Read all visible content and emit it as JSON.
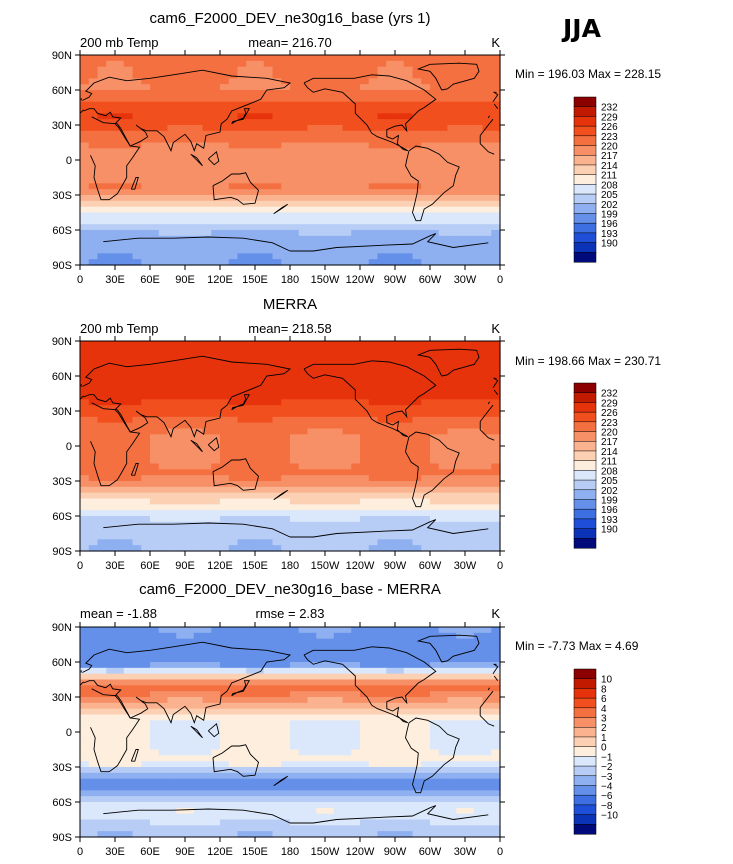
{
  "season": "JJA",
  "chart_data": [
    {
      "type": "heatmap",
      "title": "cam6_F2000_DEV_ne30g16_base (yrs 1)",
      "left_label": "200 mb Temp",
      "center_label": "mean= 216.70",
      "right_label": "K",
      "minmax": "Min = 196.03 Max = 228.15",
      "min": 196.03,
      "max": 228.15,
      "mean": 216.7,
      "x_ticks": [
        "0",
        "30E",
        "60E",
        "90E",
        "120E",
        "150E",
        "180",
        "150W",
        "120W",
        "90W",
        "60W",
        "30W",
        "0"
      ],
      "y_ticks": [
        "90N",
        "60N",
        "30N",
        "0",
        "30S",
        "60S",
        "90S"
      ],
      "colorbar": {
        "labels": [
          "232",
          "229",
          "226",
          "223",
          "220",
          "217",
          "214",
          "211",
          "208",
          "205",
          "202",
          "199",
          "196",
          "193",
          "190"
        ],
        "colors": [
          "#8c0000",
          "#c21a00",
          "#e6330b",
          "#f24f1f",
          "#f57040",
          "#f79067",
          "#fab28f",
          "#fcd0b3",
          "#fdeedd",
          "#dbe8fb",
          "#b7cdf5",
          "#8eaff0",
          "#6490ea",
          "#3d6fe2",
          "#1f4fd9",
          "#0a33b8",
          "#000a7a"
        ],
        "band_label_map": "label i sits on boundary between swatch i and i+1 (top to bottom)"
      },
      "field_summary": {
        "north_high_lat": 221,
        "north_midlat_asia": 226,
        "tropics": 219,
        "subtropics_south": 220,
        "south_midlat": 208,
        "antarctic": 199
      }
    },
    {
      "type": "heatmap",
      "title": "MERRA",
      "left_label": "200 mb Temp",
      "center_label": "mean= 218.58",
      "right_label": "K",
      "minmax": "Min = 198.66 Max = 230.71",
      "min": 198.66,
      "max": 230.71,
      "mean": 218.58,
      "x_ticks": [
        "0",
        "30E",
        "60E",
        "90E",
        "120E",
        "150E",
        "180",
        "150W",
        "120W",
        "90W",
        "60W",
        "30W",
        "0"
      ],
      "y_ticks": [
        "90N",
        "60N",
        "30N",
        "0",
        "30S",
        "60S",
        "90S"
      ],
      "colorbar": {
        "labels": [
          "232",
          "229",
          "226",
          "223",
          "220",
          "217",
          "214",
          "211",
          "208",
          "205",
          "202",
          "199",
          "196",
          "193",
          "190"
        ],
        "colors": [
          "#8c0000",
          "#c21a00",
          "#e6330b",
          "#f24f1f",
          "#f57040",
          "#f79067",
          "#fab28f",
          "#fcd0b3",
          "#fdeedd",
          "#dbe8fb",
          "#b7cdf5",
          "#8eaff0",
          "#6490ea",
          "#3d6fe2",
          "#1f4fd9",
          "#0a33b8",
          "#000a7a"
        ]
      },
      "field_summary": {
        "north_high_lat": 228,
        "north_midlat_asia": 226,
        "tropics": 220,
        "subtropics_south": 221,
        "south_midlat": 212,
        "antarctic": 202
      }
    },
    {
      "type": "heatmap",
      "title": "cam6_F2000_DEV_ne30g16_base - MERRA",
      "left_label": "mean =   -1.88",
      "center_label": "rmse =    2.83",
      "right_label": "K",
      "minmax": "Min =   -7.73 Max =    4.69",
      "min": -7.73,
      "max": 4.69,
      "mean": -1.88,
      "rmse": 2.83,
      "x_ticks": [
        "0",
        "30E",
        "60E",
        "90E",
        "120E",
        "150E",
        "180",
        "150W",
        "120W",
        "90W",
        "60W",
        "30W",
        "0"
      ],
      "y_ticks": [
        "90N",
        "60N",
        "30N",
        "0",
        "30S",
        "60S",
        "90S"
      ],
      "colorbar": {
        "labels": [
          "10",
          "8",
          "6",
          "4",
          "3",
          "2",
          "1",
          "0",
          "−1",
          "−2",
          "−3",
          "−4",
          "−6",
          "−8",
          "−10"
        ],
        "colors": [
          "#8c0000",
          "#c21a00",
          "#e6330b",
          "#f24f1f",
          "#f57040",
          "#f79067",
          "#fab28f",
          "#fcd0b3",
          "#fdeedd",
          "#dbe8fb",
          "#b7cdf5",
          "#8eaff0",
          "#6490ea",
          "#3d6fe2",
          "#1f4fd9",
          "#0a33b8",
          "#000a7a"
        ]
      },
      "field_summary": {
        "north_high_lat": -4,
        "north_midlat_asia": 4,
        "tropics": -1,
        "subtropics_south": -0.5,
        "south_midlat": -5,
        "antarctic": -3
      }
    }
  ]
}
